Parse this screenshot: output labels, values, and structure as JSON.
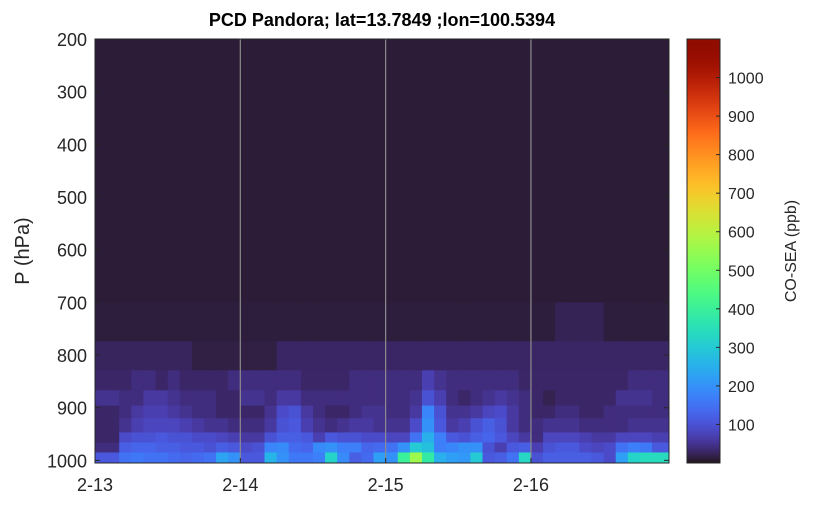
{
  "chart_data": {
    "type": "heatmap",
    "title": "PCD Pandora; lat=13.7849 ;lon=100.5394",
    "xlabel": "",
    "ylabel": "P (hPa)",
    "colorbar_label": "CO-SEA (ppb)",
    "colormap": "turbo",
    "clim": [
      0,
      1100
    ],
    "colorbar_ticks": [
      "100",
      "200",
      "300",
      "400",
      "500",
      "600",
      "700",
      "800",
      "900",
      "1000"
    ],
    "colorbar_tick_values": [
      100,
      200,
      300,
      400,
      500,
      600,
      700,
      800,
      900,
      1000
    ],
    "x_tick_labels": [
      "2-13",
      "2-14",
      "2-15",
      "2-16"
    ],
    "x_tick_values_days": [
      0,
      1,
      2,
      3
    ],
    "xlim_days": [
      0,
      3.95
    ],
    "y_tick_labels": [
      "200",
      "300",
      "400",
      "500",
      "600",
      "700",
      "800",
      "900",
      "1000"
    ],
    "y_tick_values": [
      200,
      300,
      400,
      500,
      600,
      700,
      800,
      900,
      1000
    ],
    "ylim": [
      200,
      1005
    ],
    "y_reversed": true,
    "grid_x": true,
    "time_bin_hours": 2,
    "pressure_edges": [
      200,
      700,
      774,
      829,
      867,
      896,
      920,
      947,
      966,
      985,
      1005
    ],
    "values": [
      [
        10,
        10,
        10,
        10,
        10,
        10,
        10,
        10,
        10,
        10,
        10,
        10,
        10,
        10,
        10,
        10,
        10,
        10,
        10,
        10,
        10,
        10,
        10,
        10,
        10,
        10,
        10,
        10,
        10,
        10,
        10,
        10,
        10,
        10,
        10,
        10,
        10,
        10,
        10,
        10,
        10,
        10,
        10,
        10,
        10,
        10,
        10
      ],
      [
        12,
        12,
        12,
        12,
        12,
        12,
        12,
        12,
        12,
        12,
        12,
        12,
        12,
        12,
        12,
        12,
        12,
        12,
        12,
        12,
        12,
        12,
        12,
        12,
        12,
        12,
        12,
        12,
        12,
        12,
        12,
        12,
        12,
        12,
        12,
        12,
        12,
        12,
        22,
        22,
        22,
        22,
        12,
        12,
        12,
        12,
        12
      ],
      [
        25,
        25,
        25,
        25,
        25,
        25,
        25,
        25,
        15,
        15,
        15,
        15,
        15,
        15,
        15,
        28,
        28,
        28,
        28,
        28,
        28,
        28,
        28,
        28,
        28,
        28,
        28,
        28,
        28,
        28,
        28,
        28,
        28,
        28,
        28,
        28,
        28,
        28,
        28,
        28,
        28,
        28,
        28,
        28,
        28,
        28,
        28
      ],
      [
        30,
        30,
        30,
        40,
        40,
        30,
        40,
        30,
        30,
        30,
        30,
        40,
        40,
        40,
        40,
        40,
        40,
        30,
        30,
        30,
        30,
        40,
        40,
        40,
        40,
        40,
        40,
        70,
        50,
        40,
        40,
        40,
        40,
        40,
        40,
        30,
        30,
        30,
        30,
        30,
        30,
        30,
        30,
        30,
        40,
        40,
        40
      ],
      [
        50,
        50,
        40,
        40,
        60,
        60,
        50,
        40,
        40,
        40,
        30,
        30,
        50,
        50,
        40,
        60,
        60,
        40,
        40,
        40,
        40,
        40,
        40,
        40,
        40,
        40,
        50,
        100,
        70,
        40,
        30,
        40,
        50,
        60,
        50,
        40,
        30,
        20,
        30,
        30,
        30,
        30,
        30,
        50,
        50,
        50,
        40
      ],
      [
        30,
        30,
        40,
        60,
        70,
        70,
        60,
        50,
        40,
        40,
        30,
        30,
        30,
        30,
        50,
        90,
        100,
        60,
        40,
        30,
        30,
        40,
        50,
        50,
        40,
        40,
        60,
        180,
        100,
        50,
        50,
        60,
        80,
        90,
        60,
        40,
        30,
        30,
        40,
        40,
        30,
        30,
        40,
        40,
        40,
        40,
        40
      ],
      [
        30,
        30,
        50,
        70,
        80,
        80,
        80,
        70,
        60,
        50,
        50,
        40,
        40,
        40,
        60,
        100,
        110,
        70,
        50,
        40,
        50,
        60,
        60,
        50,
        50,
        50,
        90,
        200,
        110,
        60,
        70,
        100,
        120,
        100,
        60,
        40,
        40,
        50,
        50,
        50,
        40,
        40,
        40,
        40,
        50,
        50,
        50
      ],
      [
        30,
        30,
        90,
        100,
        100,
        110,
        100,
        100,
        90,
        90,
        80,
        70,
        60,
        60,
        100,
        120,
        120,
        110,
        70,
        110,
        100,
        100,
        90,
        90,
        80,
        80,
        150,
        250,
        170,
        110,
        100,
        120,
        130,
        110,
        80,
        60,
        40,
        80,
        80,
        80,
        70,
        60,
        60,
        80,
        80,
        80,
        70
      ],
      [
        40,
        40,
        120,
        130,
        130,
        120,
        120,
        110,
        110,
        100,
        120,
        110,
        90,
        100,
        180,
        190,
        140,
        130,
        190,
        200,
        170,
        170,
        130,
        140,
        150,
        200,
        300,
        280,
        170,
        180,
        200,
        200,
        100,
        70,
        110,
        120,
        70,
        100,
        110,
        110,
        90,
        80,
        90,
        150,
        170,
        160,
        110
      ],
      [
        110,
        110,
        150,
        160,
        150,
        150,
        140,
        130,
        140,
        150,
        230,
        200,
        110,
        110,
        260,
        200,
        160,
        160,
        170,
        320,
        190,
        120,
        140,
        220,
        200,
        400,
        560,
        380,
        250,
        220,
        210,
        300,
        110,
        120,
        150,
        330,
        100,
        120,
        120,
        120,
        120,
        110,
        90,
        220,
        320,
        340,
        340
      ]
    ]
  }
}
